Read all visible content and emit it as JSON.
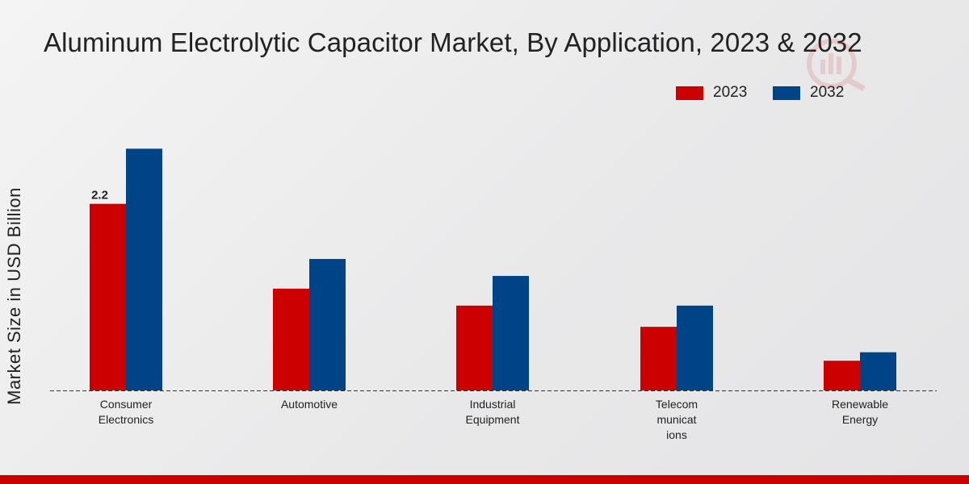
{
  "chart_data": {
    "type": "bar",
    "title": "Aluminum Electrolytic Capacitor Market, By Application, 2023 & 2032",
    "xlabel": "",
    "ylabel": "Market Size in USD Billion",
    "categories": [
      "Consumer Electronics",
      "Automotive",
      "Industrial Equipment",
      "Telecommunications",
      "Renewable Energy"
    ],
    "category_label_lines": [
      [
        "Consumer",
        "Electronics"
      ],
      [
        "Automotive"
      ],
      [
        "Industrial",
        "Equipment"
      ],
      [
        "Telecom",
        "municat",
        "ions"
      ],
      [
        "Renewable",
        "Energy"
      ]
    ],
    "series": [
      {
        "name": "2023",
        "color": "#cc0000",
        "values": [
          2.2,
          1.2,
          1.0,
          0.75,
          0.35
        ]
      },
      {
        "name": "2032",
        "color": "#004488",
        "values": [
          2.85,
          1.55,
          1.35,
          1.0,
          0.45
        ]
      }
    ],
    "data_labels": [
      {
        "series": 0,
        "index": 0,
        "text": "2.2"
      }
    ],
    "ylim": [
      0,
      3.5
    ],
    "grid": false,
    "legend_position": "top-right"
  }
}
